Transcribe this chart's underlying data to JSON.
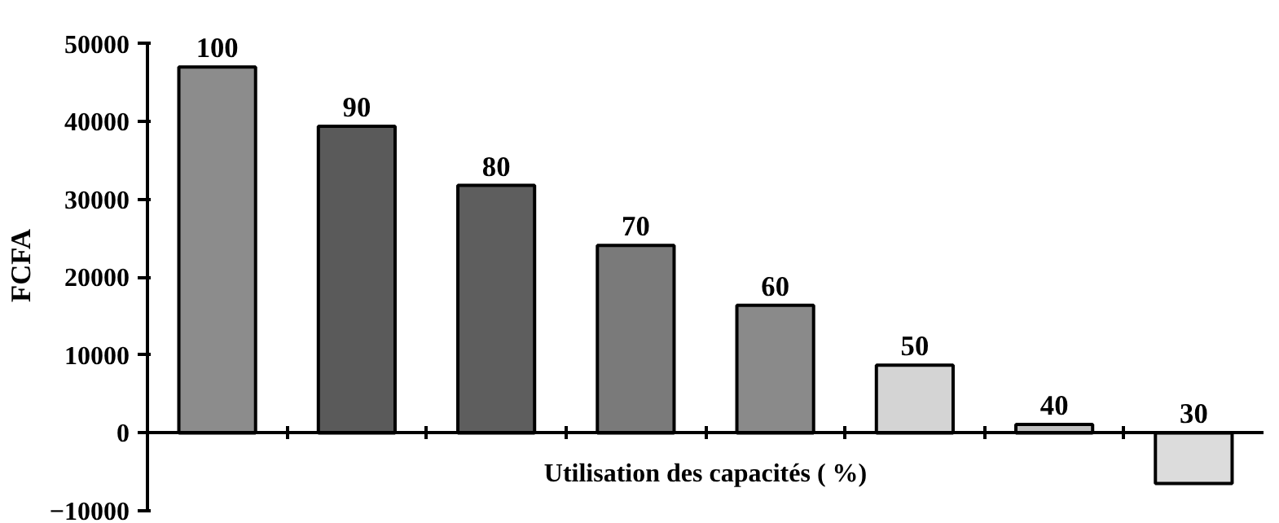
{
  "chart_data": {
    "type": "bar",
    "xlabel": "Utilisation des capacités ( %)",
    "ylabel": "FCFA",
    "categories": [
      "100",
      "90",
      "80",
      "70",
      "60",
      "50",
      "40",
      "30"
    ],
    "values": [
      47000,
      39400,
      31800,
      24100,
      16400,
      8700,
      1100,
      -6500
    ],
    "colors": [
      "#8c8c8c",
      "#5a5a5a",
      "#5e5e5e",
      "#7a7a7a",
      "#8a8a8a",
      "#d4d4d4",
      "#c0c0c0",
      "#dcdcdc"
    ],
    "ylim": [
      -10000,
      50000
    ],
    "yticks": [
      -10000,
      0,
      10000,
      20000,
      30000,
      40000,
      50000
    ]
  }
}
